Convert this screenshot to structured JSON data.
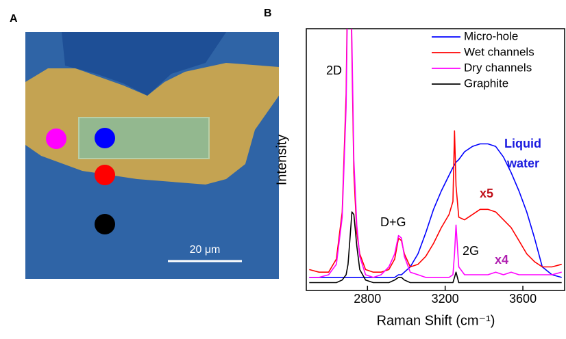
{
  "panels": {
    "a": "A",
    "b": "B"
  },
  "micrograph": {
    "scale_bar": "20 μm"
  },
  "chart_data": {
    "type": "line",
    "xlabel": "Raman Shift (cm⁻¹)",
    "ylabel": "Intensity",
    "xlim": [
      2485,
      3815
    ],
    "xticks": [
      2800,
      3200,
      3600
    ],
    "ylim": [
      0,
      100
    ],
    "legend": "upper right",
    "annotations": [
      "2D",
      "D+G",
      "2G",
      "Liquid",
      "water",
      "x5",
      "x4"
    ],
    "x": [
      2500,
      2550,
      2600,
      2640,
      2670,
      2690,
      2700,
      2710,
      2720,
      2730,
      2745,
      2760,
      2790,
      2830,
      2870,
      2910,
      2940,
      2960,
      2975,
      2990,
      3020,
      3060,
      3100,
      3140,
      3180,
      3220,
      3240,
      3248,
      3256,
      3270,
      3300,
      3340,
      3380,
      3420,
      3460,
      3500,
      3540,
      3580,
      3620,
      3660,
      3700,
      3750,
      3800
    ],
    "series": [
      {
        "name": "Micro-hole",
        "color": "#0000ff",
        "values": [
          5,
          5,
          5,
          5,
          5,
          5,
          5,
          5,
          5,
          5,
          5,
          5,
          5,
          5,
          5,
          5,
          5,
          6,
          6,
          7,
          9,
          14,
          22,
          31,
          38,
          44,
          47,
          48,
          49,
          50,
          53,
          55,
          56,
          56,
          55,
          51,
          45,
          38,
          30,
          20,
          9,
          6,
          5
        ]
      },
      {
        "name": "Wet channels",
        "color": "#ff0000",
        "values": [
          8,
          7,
          7,
          12,
          30,
          75,
          130,
          130,
          90,
          45,
          22,
          14,
          8,
          7,
          7,
          8,
          12,
          20,
          19,
          14,
          9,
          10,
          13,
          18,
          24,
          29,
          34,
          61,
          40,
          28,
          27,
          29,
          31,
          31,
          30,
          27,
          24,
          19,
          14,
          11,
          9,
          9,
          10
        ]
      },
      {
        "name": "Dry channels",
        "color": "#ff00ff",
        "values": [
          5,
          5,
          6,
          10,
          28,
          70,
          125,
          130,
          95,
          50,
          25,
          13,
          6,
          5,
          6,
          9,
          14,
          21,
          20,
          13,
          7,
          6,
          5,
          5,
          5,
          5,
          6,
          14,
          25,
          9,
          6,
          6,
          6,
          6,
          7,
          6,
          7,
          6,
          6,
          6,
          6,
          6,
          7
        ]
      },
      {
        "name": "Graphite",
        "color": "#000000",
        "values": [
          3,
          3,
          3,
          3,
          4,
          6,
          10,
          20,
          30,
          29,
          17,
          8,
          4,
          3,
          3,
          3,
          4,
          5,
          5,
          4,
          3,
          3,
          3,
          3,
          3,
          3,
          3,
          5,
          7,
          3,
          3,
          3,
          3,
          3,
          3,
          3,
          3,
          3,
          3,
          3,
          3,
          3,
          3
        ]
      }
    ]
  }
}
